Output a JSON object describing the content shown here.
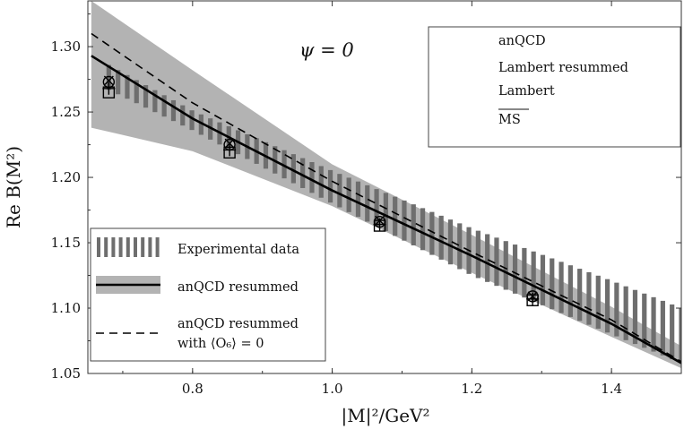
{
  "chart_data": {
    "type": "line",
    "title": "",
    "annotation": "ψ = 0",
    "xlabel": "|M|²/GeV²",
    "ylabel": "Re B(M²)",
    "xlim": [
      0.65,
      1.5
    ],
    "ylim": [
      1.05,
      1.335
    ],
    "xticks": [
      "0.8",
      "1.0",
      "1.2",
      "1.4"
    ],
    "yticks": [
      "1.05",
      "1.10",
      "1.15",
      "1.20",
      "1.25",
      "1.30"
    ],
    "grid": false,
    "series": [
      {
        "name": "anQCD resummed",
        "style": "solid",
        "x": [
          0.655,
          0.8,
          1.0,
          1.2,
          1.4,
          1.5
        ],
        "y": [
          1.293,
          1.245,
          1.19,
          1.14,
          1.088,
          1.058
        ]
      },
      {
        "name": "anQCD resummed with ⟨O₆⟩ = 0",
        "style": "dashed",
        "x": [
          0.655,
          0.8,
          1.0,
          1.2,
          1.4,
          1.5
        ],
        "y": [
          1.31,
          1.257,
          1.197,
          1.143,
          1.091,
          1.059
        ]
      }
    ],
    "bands": [
      {
        "name": "anQCD resummed",
        "color": "#b3b3b3",
        "x": [
          0.655,
          0.8,
          1.0,
          1.2,
          1.4,
          1.5
        ],
        "upper": [
          1.335,
          1.282,
          1.21,
          1.156,
          1.101,
          1.071
        ],
        "lower": [
          1.238,
          1.22,
          1.178,
          1.127,
          1.078,
          1.054
        ]
      },
      {
        "name": "Experimental data",
        "color": "#6e6e6e",
        "style": "vertical-hatch",
        "x": [
          0.68,
          0.8,
          1.0,
          1.2,
          1.4,
          1.5
        ],
        "upper": [
          1.286,
          1.251,
          1.205,
          1.161,
          1.121,
          1.1
        ],
        "lower": [
          1.267,
          1.236,
          1.18,
          1.125,
          1.08,
          1.058
        ]
      }
    ],
    "points": [
      {
        "name": "anQCD",
        "marker": "square",
        "x": [
          0.68,
          0.853,
          1.068,
          1.287
        ],
        "y": [
          1.265,
          1.219,
          1.163,
          1.106
        ]
      },
      {
        "name": "Lambert resummed",
        "marker": "x",
        "x": [
          0.68,
          0.853,
          1.068,
          1.287
        ],
        "y": [
          1.274,
          1.226,
          1.167,
          1.109
        ]
      },
      {
        "name": "Lambert",
        "marker": "plus",
        "x": [
          0.68,
          0.853,
          1.068,
          1.287
        ],
        "y": [
          1.268,
          1.221,
          1.164,
          1.107
        ]
      },
      {
        "name": "MS",
        "marker": "circle",
        "x": [
          0.68,
          0.853,
          1.068,
          1.287
        ],
        "y": [
          1.273,
          1.225,
          1.166,
          1.109
        ]
      }
    ],
    "legend_top_right": [
      "anQCD",
      "Lambert resummed",
      "Lambert",
      "MS"
    ],
    "legend_bottom_left": [
      "Experimental data",
      "anQCD resummed",
      "anQCD resummed",
      "with ⟨O₆⟩ = 0"
    ],
    "legend_placement": [
      "top-right",
      "bottom-left"
    ]
  }
}
